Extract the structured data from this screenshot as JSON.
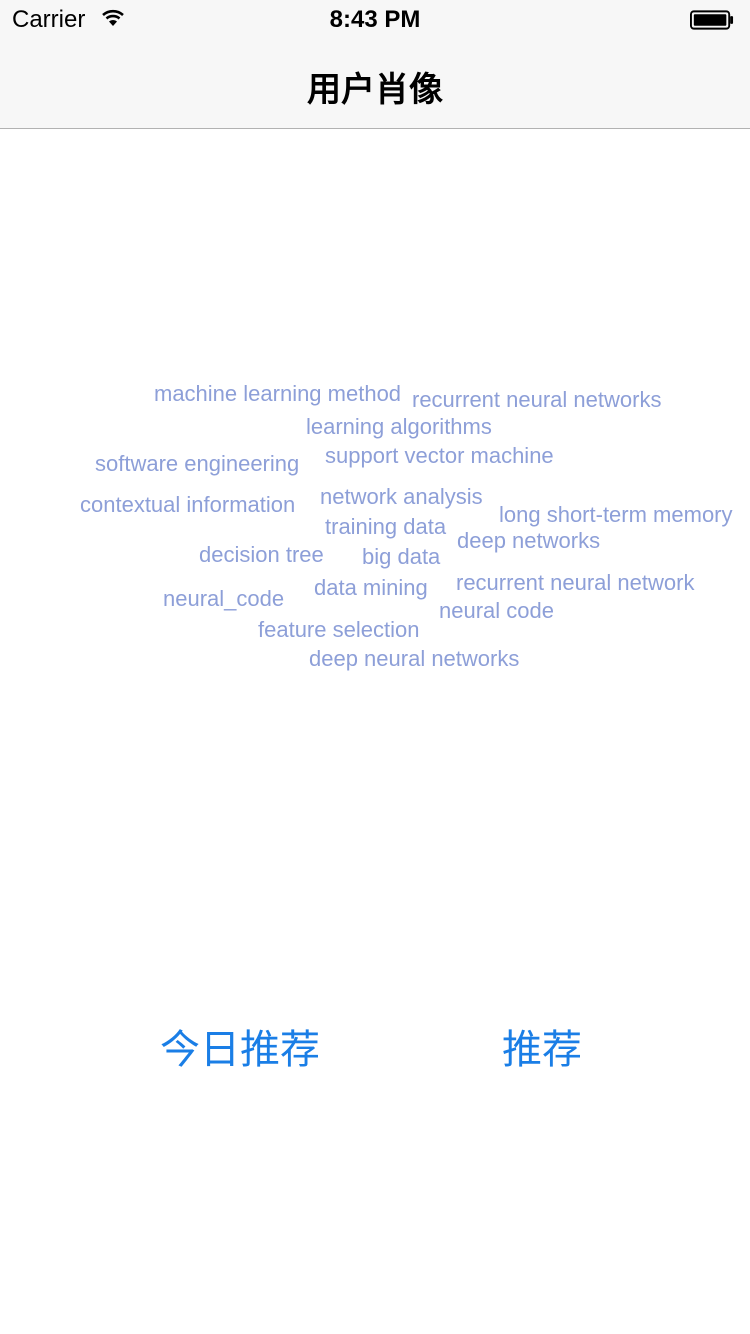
{
  "status_bar": {
    "carrier": "Carrier",
    "time": "8:43 PM"
  },
  "nav": {
    "title": "用户肖像"
  },
  "word_cloud": {
    "color": "#8d9fd8",
    "words": [
      "machine learning method",
      "recurrent neural networks",
      "learning algorithms",
      "software engineering",
      "support vector machine",
      "contextual information",
      "network analysis",
      "long short-term memory",
      "training data",
      "decision tree",
      "big data",
      "deep networks",
      "neural_code",
      "data mining",
      "recurrent neural network",
      "neural code",
      "feature selection",
      "deep neural networks"
    ]
  },
  "actions": {
    "color": "#1a7ee6",
    "today_recommend_label": "今日推荐",
    "recommend_label": "推荐"
  }
}
